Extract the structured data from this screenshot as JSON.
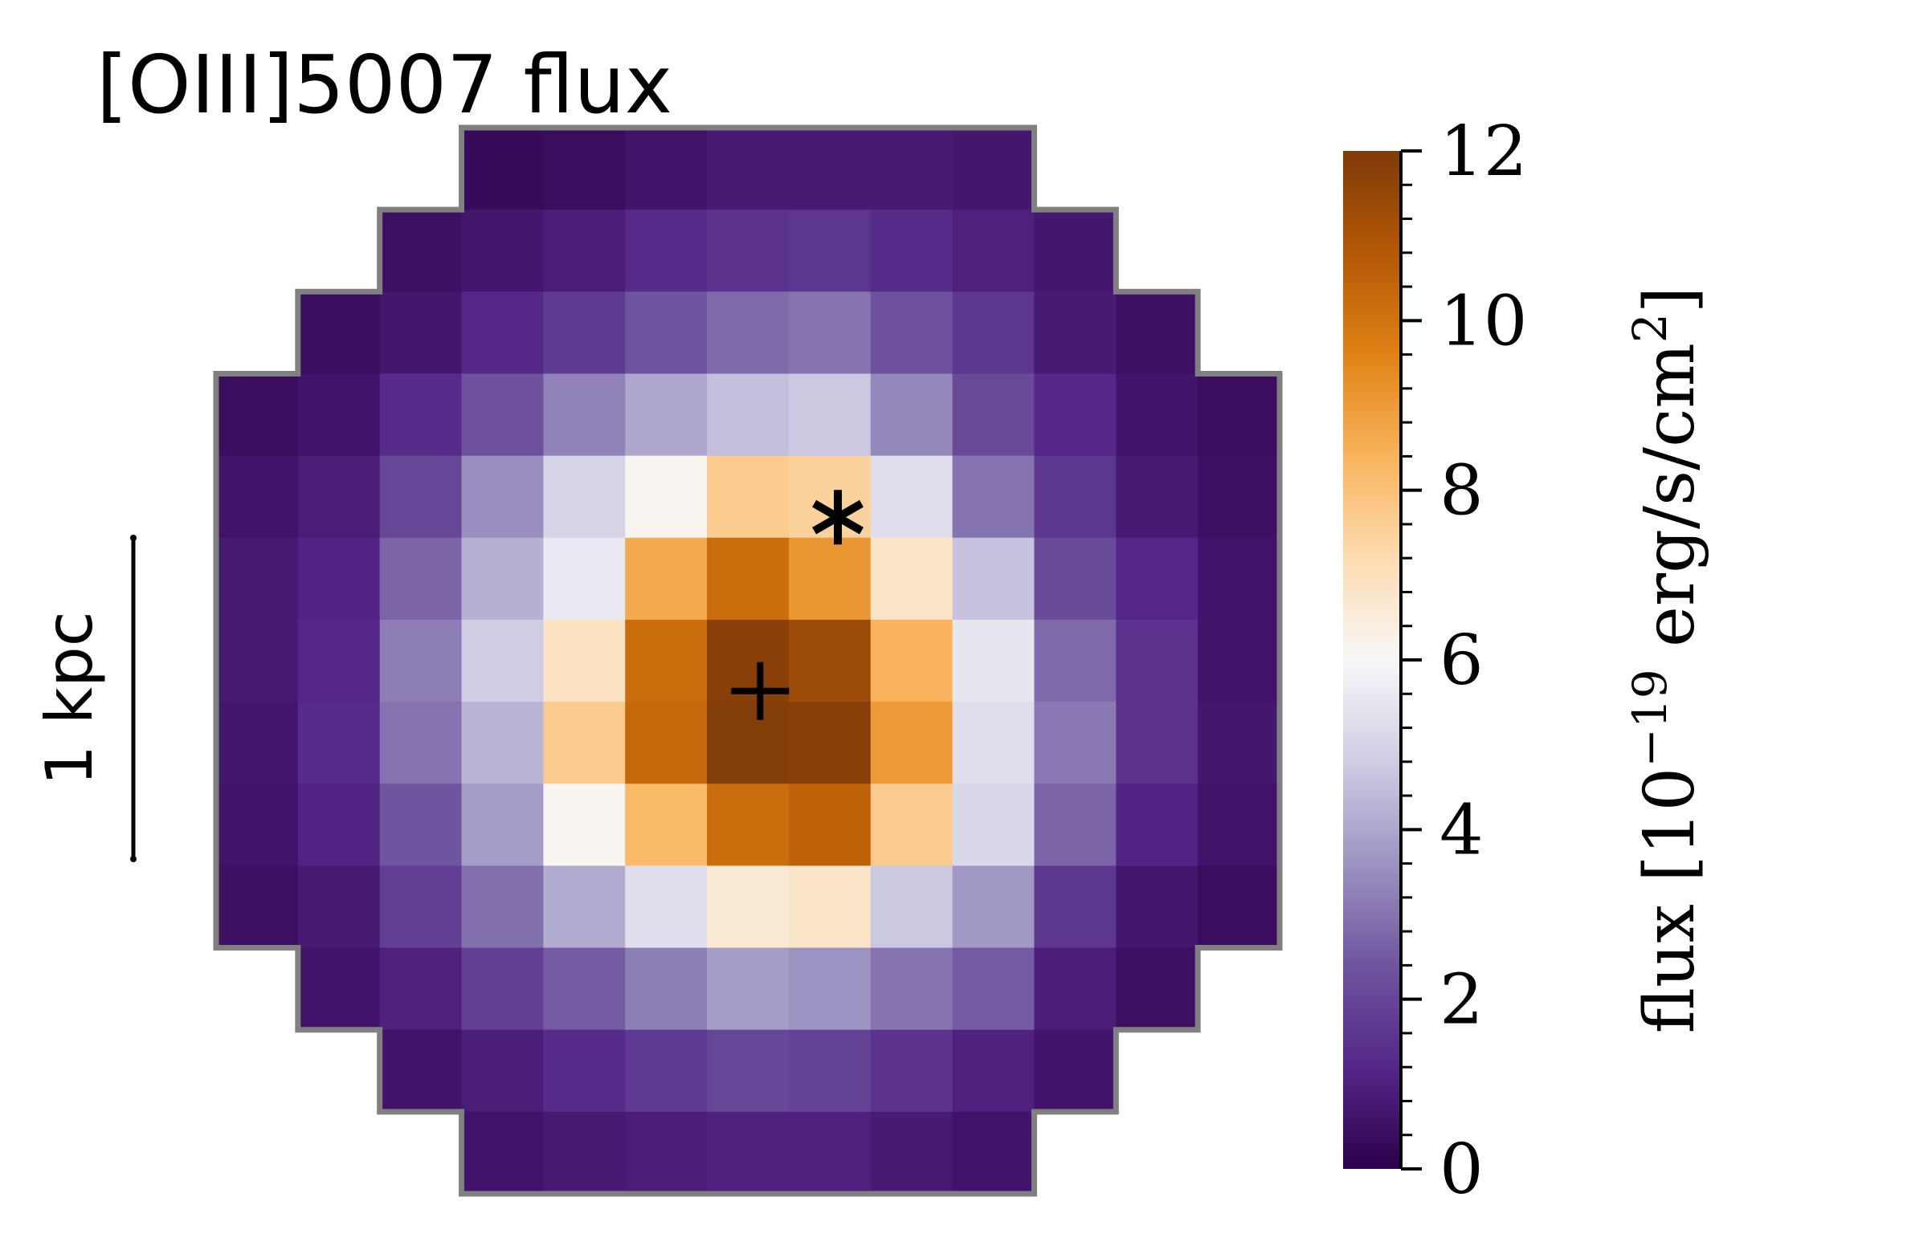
{
  "chart_data": {
    "type": "heatmap",
    "title": "[OIII]5007 flux",
    "scale_bar_label": "1 kpc",
    "colorbar": {
      "label": "flux [10^{-19} erg/s/cm^2]",
      "label_parts": {
        "prefix": "flux [10",
        "exponent": "−19",
        "unit": " erg/s/cm",
        "unit_exp": "2",
        "suffix": "]"
      },
      "range": [
        0,
        12
      ],
      "ticks": [
        "0",
        "2",
        "4",
        "6",
        "8",
        "10",
        "12"
      ],
      "colormap": "PuOr_r"
    },
    "markers": [
      {
        "symbol": "+",
        "name": "plus-marker",
        "col": 6.65,
        "row": 6.87
      },
      {
        "symbol": "*",
        "name": "asterisk-marker",
        "col": 7.6,
        "row": 4.75
      }
    ],
    "grid_size": [
      13,
      13
    ],
    "values": [
      [
        null,
        null,
        null,
        0.3,
        0.4,
        0.6,
        0.8,
        0.8,
        0.8,
        0.7,
        null,
        null,
        null
      ],
      [
        null,
        null,
        0.5,
        0.7,
        0.9,
        1.3,
        1.5,
        1.6,
        1.3,
        1.0,
        0.7,
        null,
        null
      ],
      [
        null,
        0.4,
        0.7,
        1.2,
        1.7,
        2.4,
        2.8,
        3.0,
        2.3,
        1.6,
        0.8,
        0.5,
        null
      ],
      [
        0.4,
        0.6,
        1.3,
        2.3,
        3.3,
        4.0,
        4.5,
        4.7,
        3.4,
        2.1,
        1.2,
        0.6,
        0.4
      ],
      [
        0.6,
        0.9,
        2.0,
        3.5,
        5.0,
        6.1,
        7.7,
        7.5,
        5.3,
        3.0,
        1.6,
        0.8,
        0.5
      ],
      [
        0.8,
        1.1,
        2.7,
        4.2,
        5.6,
        8.6,
        10.2,
        9.1,
        6.8,
        4.6,
        2.1,
        1.2,
        0.6
      ],
      [
        0.8,
        1.2,
        3.2,
        4.8,
        6.9,
        10.2,
        11.8,
        11.3,
        8.4,
        5.5,
        2.8,
        1.5,
        0.6
      ],
      [
        0.7,
        1.3,
        3.0,
        4.3,
        7.7,
        10.3,
        11.9,
        11.8,
        9.0,
        5.3,
        3.1,
        1.5,
        0.7
      ],
      [
        0.6,
        1.1,
        2.4,
        3.8,
        6.1,
        8.2,
        10.2,
        10.5,
        7.7,
        5.1,
        2.7,
        1.1,
        0.6
      ],
      [
        0.5,
        0.8,
        1.8,
        2.9,
        4.1,
        5.3,
        6.6,
        6.8,
        4.7,
        3.7,
        1.6,
        0.7,
        0.4
      ],
      [
        null,
        0.6,
        1.0,
        1.8,
        2.5,
        3.2,
        3.8,
        3.6,
        3.0,
        2.5,
        0.9,
        0.5,
        null
      ],
      [
        null,
        null,
        0.6,
        0.9,
        1.3,
        1.7,
        2.0,
        1.9,
        1.5,
        1.0,
        0.6,
        null,
        null
      ],
      [
        null,
        null,
        null,
        0.6,
        0.8,
        0.9,
        1.0,
        1.0,
        0.8,
        0.6,
        null,
        null,
        null
      ]
    ]
  }
}
